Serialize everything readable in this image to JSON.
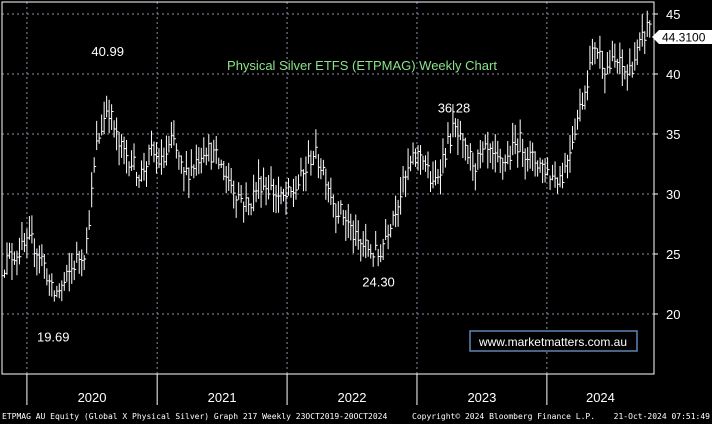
{
  "chart_data": {
    "type": "line",
    "style": "ohlc-weekly",
    "title": "Physical Silver ETFS (ETPMAG) Weekly Chart",
    "last_value_label": "44.3100",
    "ylim": [
      15,
      46
    ],
    "y_ticks": [
      20,
      25,
      30,
      35,
      40,
      45
    ],
    "x_ticks": [
      "2020",
      "2021",
      "2022",
      "2023",
      "2024"
    ],
    "grid": true,
    "annotations": [
      {
        "text": "40.99",
        "x": "2020-08",
        "y": 40.99
      },
      {
        "text": "19.69",
        "x": "2020-03",
        "y": 19.69
      },
      {
        "text": "24.30",
        "x": "2022-09",
        "y": 24.3
      },
      {
        "text": "36.28",
        "x": "2023-04",
        "y": 36.28
      }
    ],
    "series": [
      {
        "x": [
          "2019-10",
          "2019-11",
          "2019-12",
          "2020-01",
          "2020-02",
          "2020-03",
          "2020-04",
          "2020-05",
          "2020-06",
          "2020-07",
          "2020-08",
          "2020-09",
          "2020-10",
          "2020-11",
          "2020-12",
          "2021-01",
          "2021-02",
          "2021-03",
          "2021-04",
          "2021-05",
          "2021-06",
          "2021-07",
          "2021-08",
          "2021-09",
          "2021-10",
          "2021-11",
          "2021-12",
          "2022-01",
          "2022-02",
          "2022-03",
          "2022-04",
          "2022-05",
          "2022-06",
          "2022-07",
          "2022-08",
          "2022-09",
          "2022-10",
          "2022-11",
          "2022-12",
          "2023-01",
          "2023-02",
          "2023-03",
          "2023-04",
          "2023-05",
          "2023-06",
          "2023-07",
          "2023-08",
          "2023-09",
          "2023-10",
          "2023-11",
          "2023-12",
          "2024-01",
          "2024-02",
          "2024-03",
          "2024-04",
          "2024-05",
          "2024-06",
          "2024-07",
          "2024-08",
          "2024-09",
          "2024-10"
        ],
        "values": [
          23.5,
          24.8,
          25.3,
          26.0,
          24.5,
          21.5,
          22.5,
          24.3,
          25.5,
          34.0,
          37.5,
          34.0,
          33.0,
          31.5,
          33.5,
          32.5,
          34.5,
          31.5,
          32.5,
          34.0,
          33.0,
          31.5,
          30.0,
          29.0,
          31.0,
          30.5,
          29.5,
          30.0,
          31.5,
          33.5,
          32.0,
          29.0,
          28.0,
          26.0,
          25.5,
          24.8,
          27.5,
          30.0,
          32.5,
          33.5,
          30.5,
          33.0,
          35.5,
          33.5,
          32.5,
          33.5,
          32.5,
          33.0,
          34.5,
          33.0,
          32.5,
          31.5,
          31.5,
          35.0,
          38.5,
          42.5,
          40.5,
          41.0,
          40.0,
          42.0,
          44.31
        ]
      }
    ]
  },
  "watermark": "www.marketmatters.com.au",
  "footer": {
    "left": "ETPMAG AU Equity (Global X Physical Silver) Graph 217  Weekly 23OCT2019-20OCT2024",
    "center": "Copyright© 2024 Bloomberg Finance L.P.",
    "right": "21-Oct-2024 07:51:49"
  },
  "colors": {
    "background": "#000000",
    "plot_border": "#ffffff",
    "grid": "#8b8fa8",
    "bars": "#ffffff",
    "title": "#8be38b",
    "watermark_text": "#ffffff",
    "watermark_border": "#5f86b3"
  }
}
